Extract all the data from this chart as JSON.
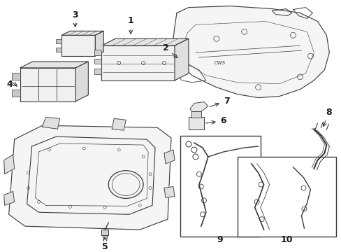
{
  "bg_color": "#ffffff",
  "line_color": "#3a3a3a",
  "label_color": "#1a1a1a",
  "fig_width": 4.89,
  "fig_height": 3.6,
  "dpi": 100
}
